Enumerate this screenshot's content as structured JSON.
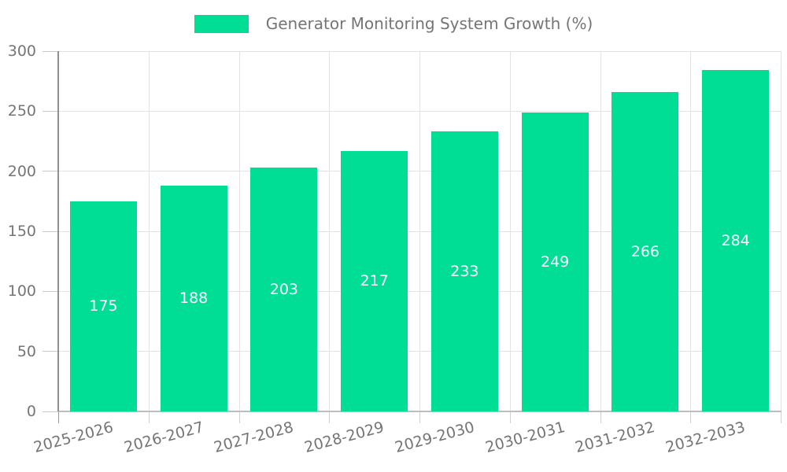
{
  "chart_data": {
    "type": "bar",
    "title": "Generator Monitoring System Growth (%)",
    "series_name": "Generator Monitoring System Growth (%)",
    "categories": [
      "2025-2026",
      "2026-2027",
      "2027-2028",
      "2028-2029",
      "2029-2030",
      "2030-2031",
      "2031-2032",
      "2032-2033"
    ],
    "values": [
      175,
      188,
      203,
      217,
      233,
      249,
      266,
      284
    ],
    "xlabel": "",
    "ylabel": "",
    "ylim": [
      0,
      300
    ],
    "yticks": [
      0,
      50,
      100,
      150,
      200,
      250,
      300
    ],
    "grid": "on",
    "legend_position": "top-center",
    "value_labels": "inside-center",
    "x_label_rotation_deg": -15,
    "bar_color": "#00DE95",
    "value_label_color": "#FFFFFF",
    "axis_text_color": "#757575",
    "background_color": "#FFFFFF"
  }
}
